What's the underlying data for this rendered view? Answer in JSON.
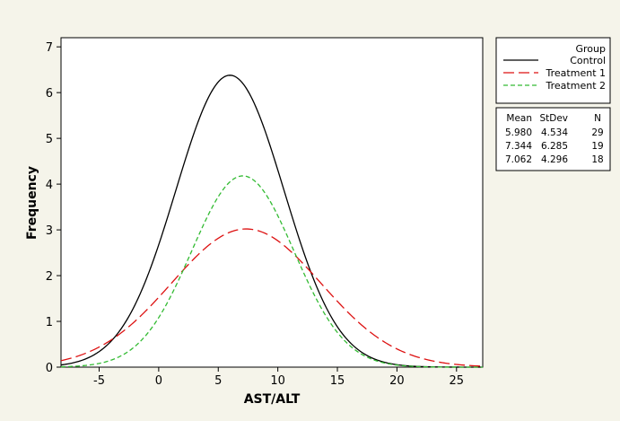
{
  "chart_data": {
    "type": "line",
    "title": "",
    "xlabel": "AST/ALT",
    "ylabel": "Frequency",
    "xlim": [
      -8.2,
      27.2
    ],
    "ylim": [
      0,
      7.2
    ],
    "x_ticks": [
      -5,
      0,
      5,
      10,
      15,
      20,
      25
    ],
    "y_ticks": [
      0,
      1,
      2,
      3,
      4,
      5,
      6,
      7
    ],
    "grid": false,
    "legend": {
      "title": "Group",
      "placement": "right"
    },
    "series": [
      {
        "name": "Control",
        "color": "#000000",
        "dash": "solid",
        "mean": 5.98,
        "stdev": 4.534,
        "n": 29,
        "peak": 6.38
      },
      {
        "name": "Treatment 1",
        "color": "#dd1111",
        "dash": "long-dash",
        "mean": 7.344,
        "stdev": 6.285,
        "n": 19,
        "peak": 3.02
      },
      {
        "name": "Treatment 2",
        "color": "#33bb33",
        "dash": "short-dash",
        "mean": 7.062,
        "stdev": 4.296,
        "n": 18,
        "peak": 4.18
      }
    ],
    "stats_table": {
      "headers": [
        "Mean",
        "StDev",
        "N"
      ],
      "rows": [
        [
          "5.980",
          "4.534",
          "29"
        ],
        [
          "7.344",
          "6.285",
          "19"
        ],
        [
          "7.062",
          "4.296",
          "18"
        ]
      ]
    }
  }
}
